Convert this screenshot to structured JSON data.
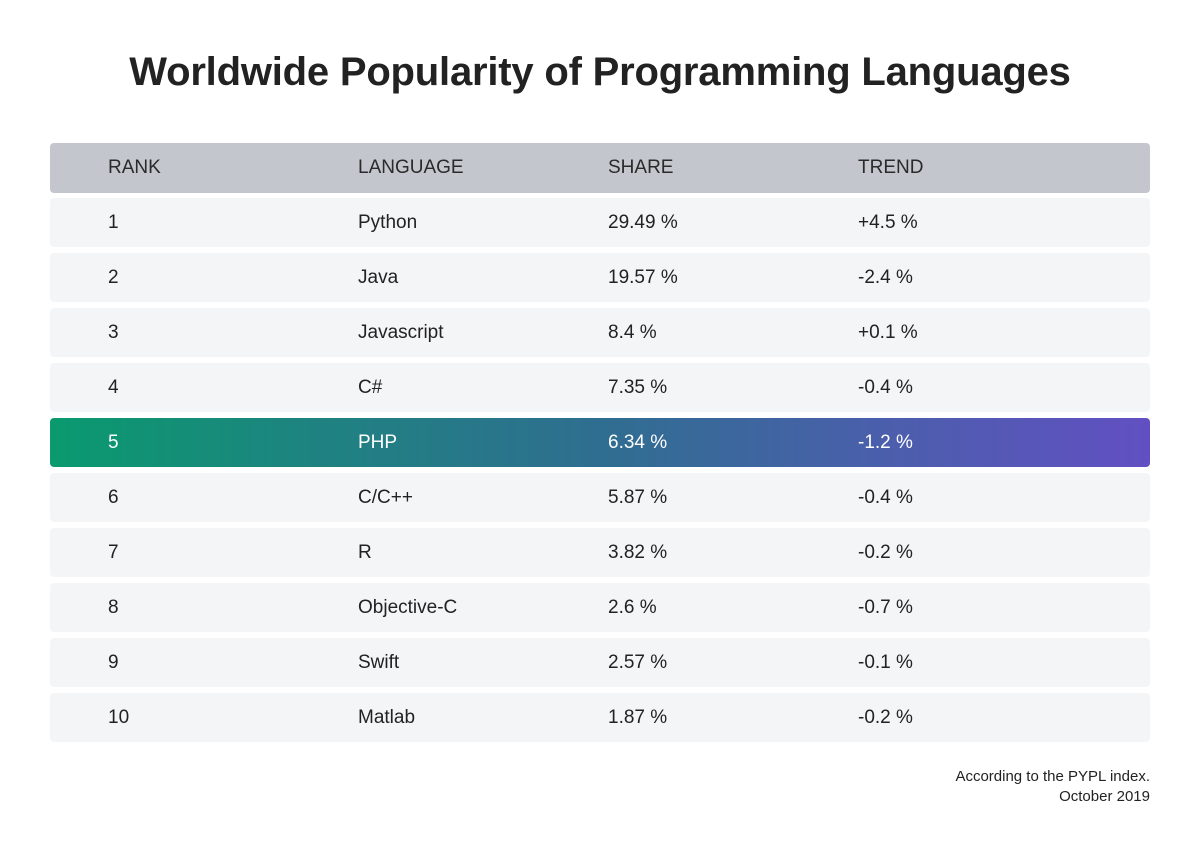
{
  "title": "Worldwide Popularity of Programming Languages",
  "columns": {
    "rank": "RANK",
    "language": "LANGUAGE",
    "share": "SHARE",
    "trend": "TREND"
  },
  "highlight_row_index": 4,
  "colors": {
    "header_bg": "#c3c6cd",
    "row_bg": "#f4f5f7",
    "highlight_gradient_start": "#0a9a6e",
    "highlight_gradient_end": "#6250c2"
  },
  "chart_data": {
    "type": "table",
    "title": "Worldwide Popularity of Programming Languages",
    "headers": [
      "RANK",
      "LANGUAGE",
      "SHARE",
      "TREND"
    ],
    "rows": [
      {
        "rank": "1",
        "language": "Python",
        "share": "29.49 %",
        "trend": "+4.5 %"
      },
      {
        "rank": "2",
        "language": "Java",
        "share": "19.57 %",
        "trend": "-2.4 %"
      },
      {
        "rank": "3",
        "language": "Javascript",
        "share": "8.4 %",
        "trend": "+0.1 %"
      },
      {
        "rank": "4",
        "language": "C#",
        "share": "7.35 %",
        "trend": "-0.4 %"
      },
      {
        "rank": "5",
        "language": "PHP",
        "share": "6.34 %",
        "trend": "-1.2 %"
      },
      {
        "rank": "6",
        "language": "C/C++",
        "share": "5.87 %",
        "trend": "-0.4 %"
      },
      {
        "rank": "7",
        "language": "R",
        "share": "3.82 %",
        "trend": "-0.2 %"
      },
      {
        "rank": "8",
        "language": "Objective-C",
        "share": "2.6 %",
        "trend": "-0.7 %"
      },
      {
        "rank": "9",
        "language": "Swift",
        "share": "2.57 %",
        "trend": "-0.1 %"
      },
      {
        "rank": "10",
        "language": "Matlab",
        "share": "1.87 %",
        "trend": "-0.2 %"
      }
    ]
  },
  "footnote": {
    "line1": "According to the PYPL index.",
    "line2": "October 2019"
  }
}
